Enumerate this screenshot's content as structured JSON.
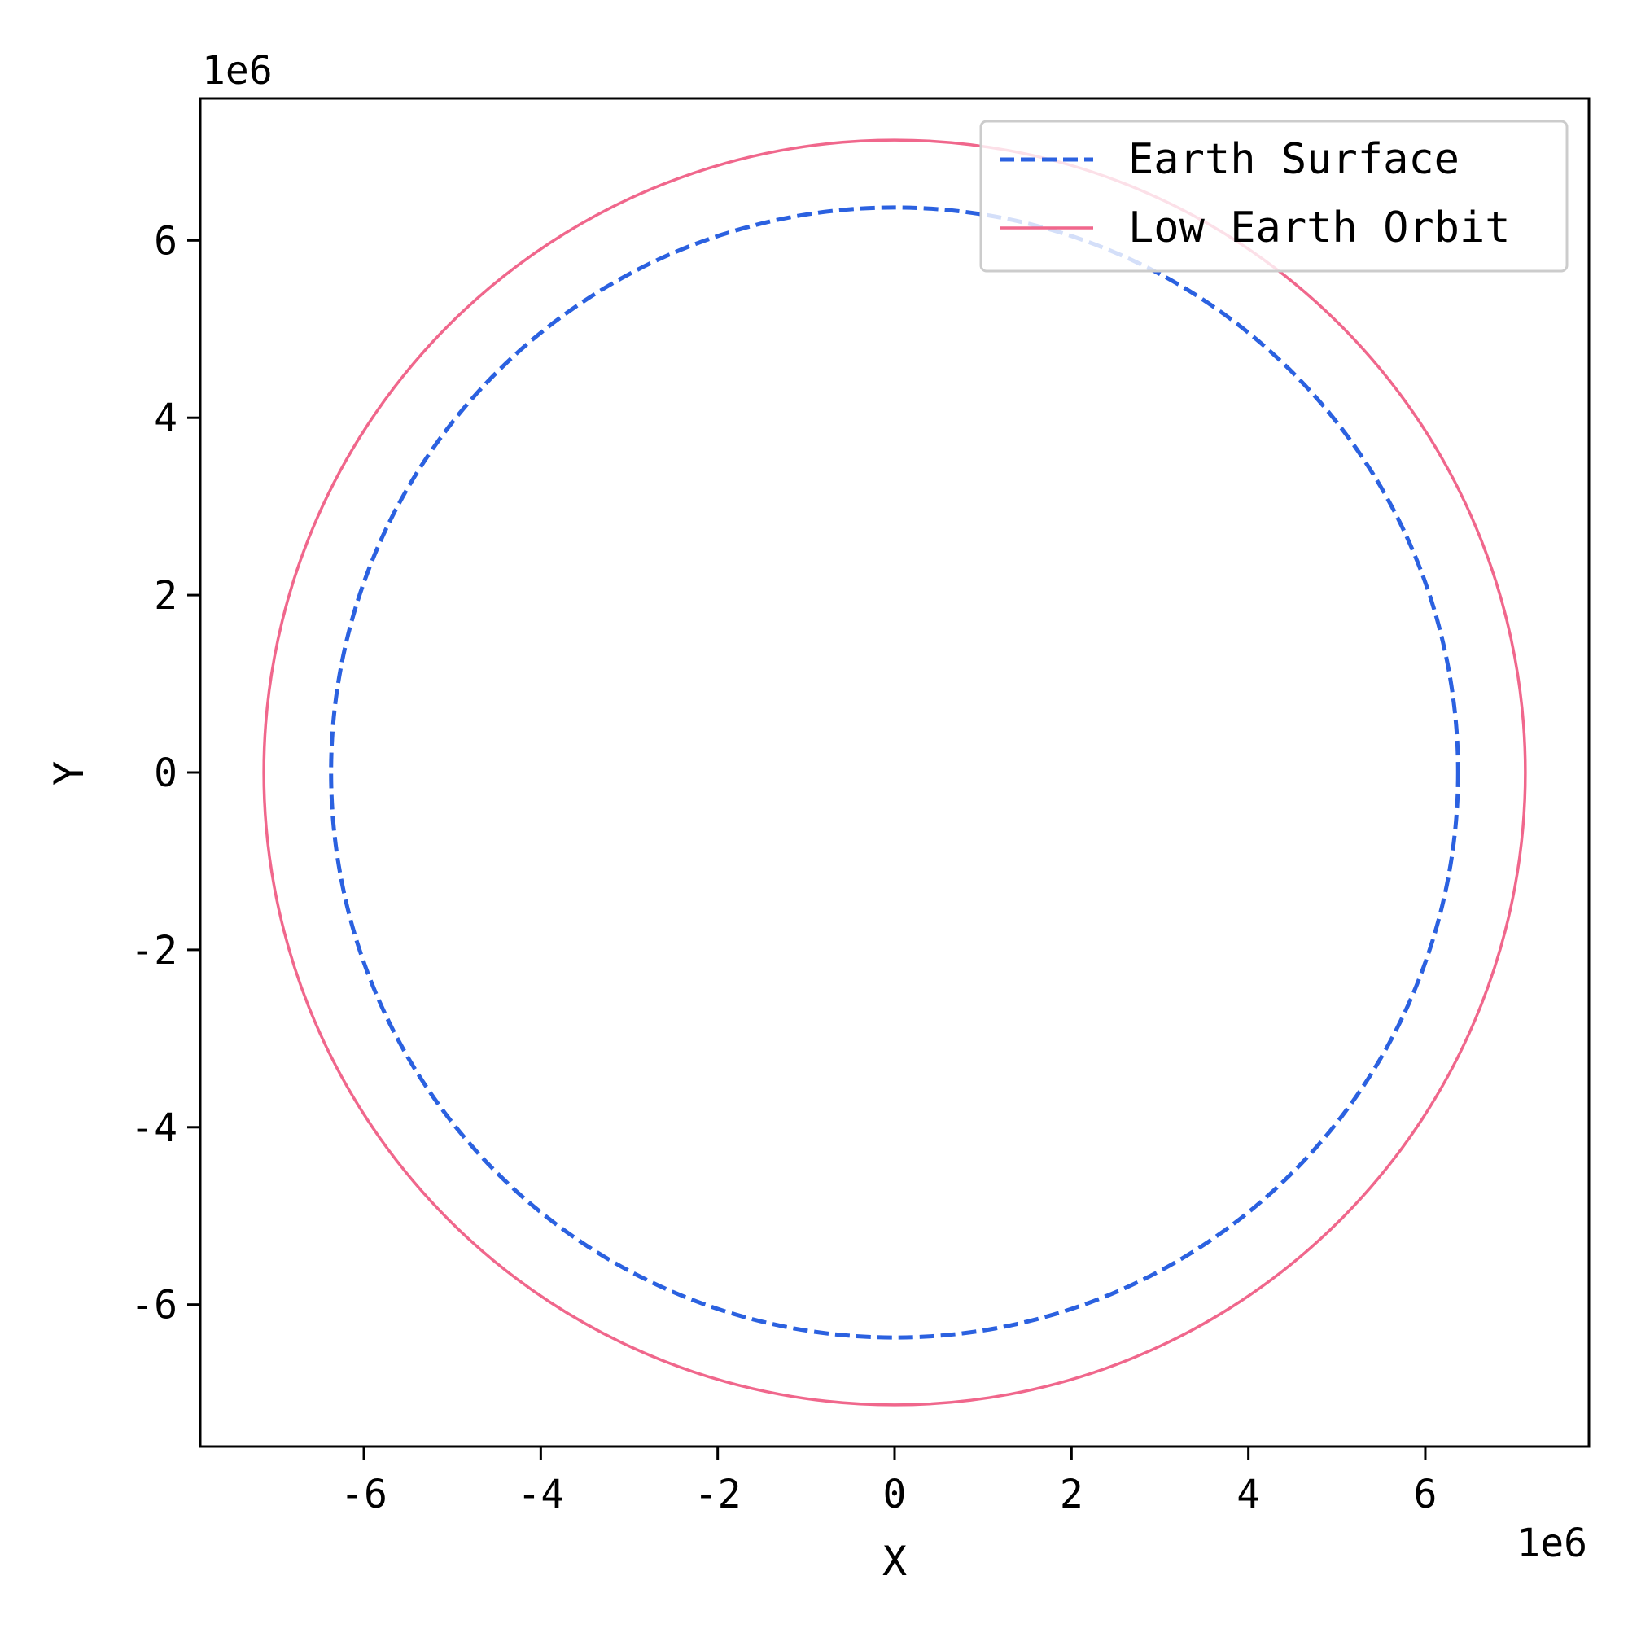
{
  "chart_data": {
    "type": "line",
    "title": "",
    "xlabel": "X",
    "ylabel": "Y",
    "x_offset_label": "1e6",
    "y_offset_label": "1e6",
    "xlim": [
      -7.85,
      7.85
    ],
    "ylim": [
      -7.6,
      7.6
    ],
    "xticks": [
      -6,
      -4,
      -2,
      0,
      2,
      4,
      6
    ],
    "yticks": [
      -6,
      -4,
      -2,
      0,
      2,
      4,
      6
    ],
    "grid": false,
    "legend_position": "upper-right",
    "series": [
      {
        "name": "Earth Surface",
        "shape": "circle",
        "center": [
          0,
          0
        ],
        "radius": 6.371,
        "line_style": "dashed",
        "color": "#2b61e0"
      },
      {
        "name": "Low Earth Orbit",
        "shape": "circle",
        "center": [
          0,
          0
        ],
        "radius": 7.131,
        "line_style": "solid",
        "color": "#f0678c"
      }
    ]
  }
}
